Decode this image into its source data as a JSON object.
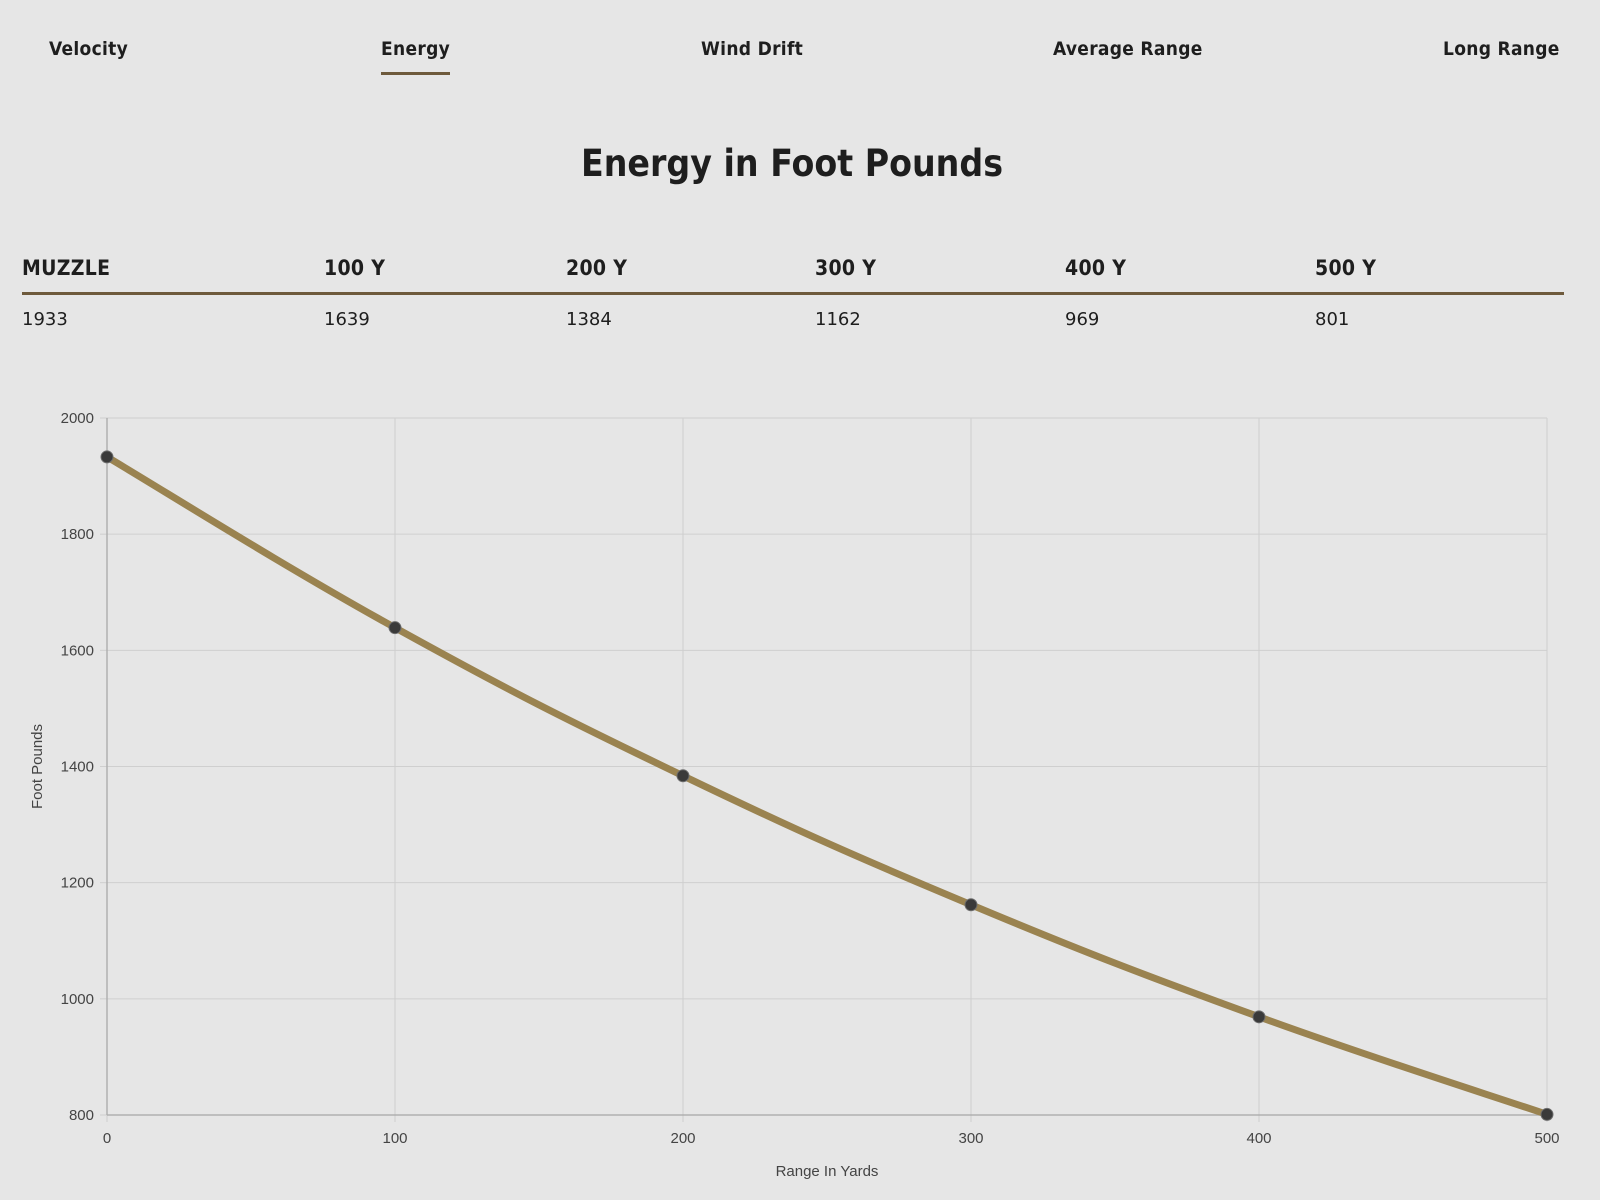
{
  "tabs": [
    {
      "label": "Velocity",
      "active": false
    },
    {
      "label": "Energy",
      "active": true
    },
    {
      "label": "Wind Drift",
      "active": false
    },
    {
      "label": "Average Range",
      "active": false
    },
    {
      "label": "Long Range",
      "active": false
    }
  ],
  "section_title": "Energy in Foot Pounds",
  "table": {
    "headers": [
      "MUZZLE",
      "100 Y",
      "200 Y",
      "300 Y",
      "400 Y",
      "500 Y"
    ],
    "values": [
      "1933",
      "1639",
      "1384",
      "1162",
      "969",
      "801"
    ]
  },
  "colors": {
    "accent": "#6e5a3c",
    "line": "#9a8350",
    "point": "#3a3a3a",
    "grid": "#cfcfcf",
    "axis": "#b0b0b0"
  },
  "chart_data": {
    "type": "line",
    "x": [
      0,
      100,
      200,
      300,
      400,
      500
    ],
    "series": [
      {
        "values": [
          1933,
          1639,
          1384,
          1162,
          969,
          801
        ]
      }
    ],
    "xlabel": "Range In Yards",
    "ylabel": "Foot Pounds",
    "xlim": [
      0,
      500
    ],
    "ylim": [
      800,
      2000
    ],
    "xticks": [
      0,
      100,
      200,
      300,
      400,
      500
    ],
    "yticks": [
      800,
      1000,
      1200,
      1400,
      1600,
      1800,
      2000
    ],
    "grid": true,
    "curve": "smooth"
  }
}
